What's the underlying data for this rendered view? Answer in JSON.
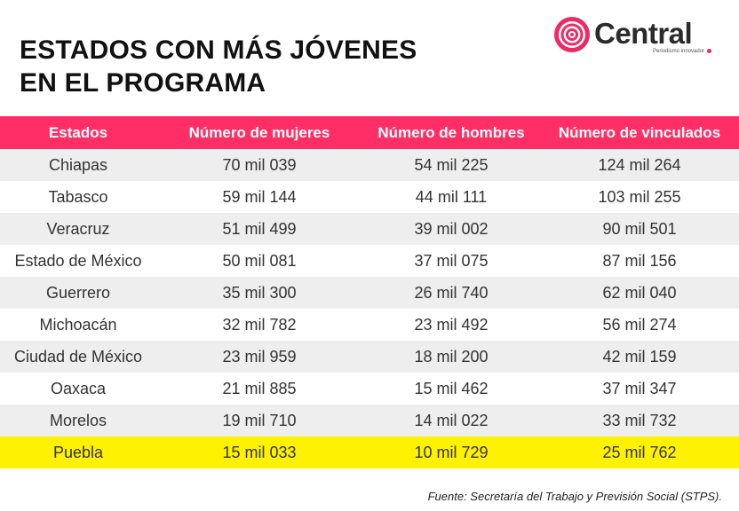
{
  "title": {
    "line1": "ESTADOS CON MÁS JÓVENES",
    "line2": "EN EL PROGRAMA"
  },
  "logo": {
    "name": "Central",
    "tagline": "Periodismo innovador",
    "icon": "central-logo-icon",
    "accent_color": "#ee2965"
  },
  "table": {
    "headers": [
      "Estados",
      "Número de mujeres",
      "Número de hombres",
      "Número de vinculados"
    ],
    "header_color": "#ff2f66",
    "highlight_color": "#fef200",
    "rows": [
      [
        "Chiapas",
        "70 mil 039",
        "54 mil 225",
        "124 mil 264"
      ],
      [
        "Tabasco",
        "59 mil 144",
        "44 mil 111",
        "103 mil 255"
      ],
      [
        "Veracruz",
        "51 mil 499",
        "39 mil 002",
        "90 mil 501"
      ],
      [
        "Estado de México",
        "50 mil 081",
        "37 mil 075",
        "87 mil 156"
      ],
      [
        "Guerrero",
        "35 mil 300",
        "26 mil 740",
        "62 mil 040"
      ],
      [
        "Michoacán",
        "32 mil 782",
        "23 mil 492",
        "56 mil 274"
      ],
      [
        "Ciudad de México",
        "23 mil 959",
        "18 mil 200",
        "42 mil 159"
      ],
      [
        "Oaxaca",
        "21 mil 885",
        "15 mil 462",
        "37 mil 347"
      ],
      [
        "Morelos",
        "19 mil 710",
        "14 mil 022",
        "33 mil 732"
      ],
      [
        "Puebla",
        "15 mil 033",
        "10 mil 729",
        "25 mil 762"
      ]
    ]
  },
  "source": "Fuente: Secretaría del Trabajo y Previsión Social (STPS)."
}
